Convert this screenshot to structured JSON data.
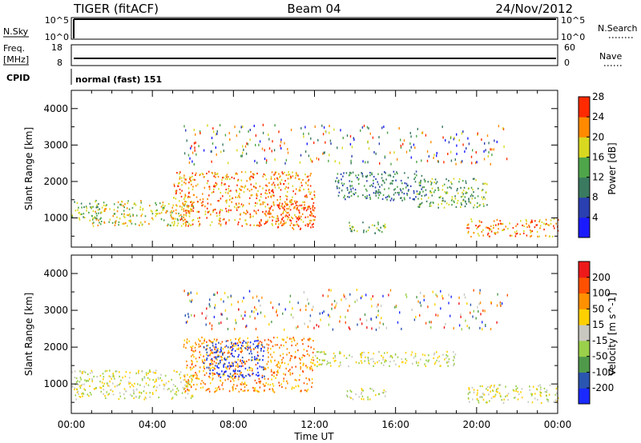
{
  "header": {
    "left": "TIGER (fitACF)",
    "center": "Beam 04",
    "right": "24/Nov/2012"
  },
  "top_panels": {
    "nsky_label": "N.Sky",
    "nsky_ticks": [
      "10^5",
      "10^0"
    ],
    "nsearch_label": "N.Search",
    "nsearch_ticks": [
      "10^5",
      "10^0"
    ],
    "freq_label_line1": "Freq.",
    "freq_label_line2": "[MHz]",
    "freq_ticks": [
      "18",
      "8"
    ],
    "nave_label": "Nave",
    "nave_ticks": [
      "60",
      "0"
    ],
    "cpid_label": "CPID",
    "cpid_value": "normal (fast) 151"
  },
  "x_axis": {
    "label": "Time UT",
    "ticks": [
      "00:00",
      "04:00",
      "08:00",
      "12:00",
      "16:00",
      "20:00",
      "00:00"
    ],
    "range_hours": [
      0,
      24
    ]
  },
  "chart_data": [
    {
      "type": "heatmap",
      "panel": "power",
      "ylabel": "Slant Range [km]",
      "yticks": [
        "1000",
        "2000",
        "3000",
        "4000"
      ],
      "ylim": [
        200,
        4500
      ],
      "xlim_hours": [
        0,
        24
      ],
      "colorbar_label": "Power [dB]",
      "colorbar_ticks": [
        "4",
        "8",
        "12",
        "16",
        "20",
        "24",
        "28"
      ],
      "colorbar_colors": [
        "#1a1aff",
        "#2a3fb0",
        "#3a7a60",
        "#4fa54a",
        "#d8d820",
        "#ff8a00",
        "#ff2a00"
      ],
      "regions": [
        {
          "t0": 0.0,
          "t1": 1.5,
          "r0": 900,
          "r1": 1500,
          "level": 3
        },
        {
          "t0": 1.0,
          "t1": 6.0,
          "r0": 800,
          "r1": 1500,
          "level": 4
        },
        {
          "t0": 5.0,
          "t1": 12.0,
          "r0": 800,
          "r1": 2300,
          "level": 5
        },
        {
          "t0": 9.5,
          "t1": 12.0,
          "r0": 700,
          "r1": 1400,
          "level": 6
        },
        {
          "t0": 13.0,
          "t1": 17.5,
          "r0": 1500,
          "r1": 2300,
          "level": 2
        },
        {
          "t0": 13.5,
          "t1": 15.5,
          "r0": 600,
          "r1": 900,
          "level": 3
        },
        {
          "t0": 17.0,
          "t1": 20.5,
          "r0": 1300,
          "r1": 2100,
          "level": 3
        },
        {
          "t0": 19.5,
          "t1": 24.0,
          "r0": 500,
          "r1": 1000,
          "level": 5
        }
      ]
    },
    {
      "type": "heatmap",
      "panel": "velocity",
      "ylabel": "Slant Range [km]",
      "yticks": [
        "1000",
        "2000",
        "3000",
        "4000"
      ],
      "ylim": [
        200,
        4500
      ],
      "xlim_hours": [
        0,
        24
      ],
      "colorbar_label": "Velocity [m s^-1]",
      "colorbar_ticks": [
        "200",
        "100",
        "50",
        "15",
        "-15",
        "-50",
        "-100",
        "-200"
      ],
      "colorbar_colors": [
        "#1a2aff",
        "#2a55b0",
        "#4f9a4a",
        "#9ad04a",
        "#c8c8c0",
        "#ffd000",
        "#ff9000",
        "#ff5000",
        "#ee1a1a"
      ],
      "regions": [
        {
          "t0": 0.0,
          "t1": 6.0,
          "r0": 600,
          "r1": 1400,
          "level": 4
        },
        {
          "t0": 5.5,
          "t1": 12.0,
          "r0": 800,
          "r1": 2300,
          "level": 6
        },
        {
          "t0": 6.5,
          "t1": 9.5,
          "r0": 1200,
          "r1": 2200,
          "level": 0
        },
        {
          "t0": 12.0,
          "t1": 19.0,
          "r0": 1500,
          "r1": 1900,
          "level": 4
        },
        {
          "t0": 13.5,
          "t1": 15.5,
          "r0": 600,
          "r1": 900,
          "level": 4
        },
        {
          "t0": 19.5,
          "t1": 24.0,
          "r0": 500,
          "r1": 1000,
          "level": 4
        }
      ]
    }
  ]
}
